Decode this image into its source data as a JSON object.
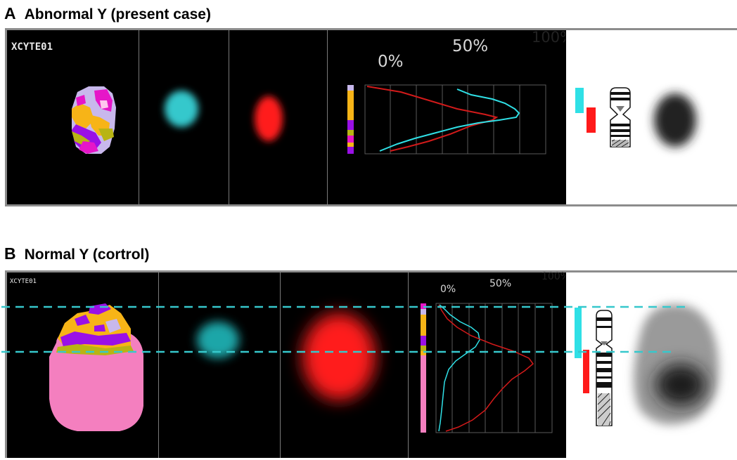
{
  "panel_a": {
    "letter": "A",
    "title": "Abnormal Y (present case)",
    "code": "XCYTE01",
    "label_0": "0%",
    "label_50": "50%",
    "label_100": "100%"
  },
  "panel_b": {
    "letter": "B",
    "title": "Normal Y (cortrol)",
    "code": "XCYTE01",
    "label_0": "0%",
    "label_50": "50%",
    "label_100": "100%"
  },
  "colors": {
    "cyan_signal": "#36c8cc",
    "red_signal": "#ff1a1a",
    "profile_cyan": "#2fe0e6",
    "profile_red": "#d21a1a",
    "mband_magenta": "#e616c8",
    "mband_purple": "#9a10e6",
    "mband_yellow": "#f7b417",
    "mband_olive": "#b8b414",
    "mband_pink": "#f47fbf",
    "mband_lavender": "#c8b8ec"
  }
}
